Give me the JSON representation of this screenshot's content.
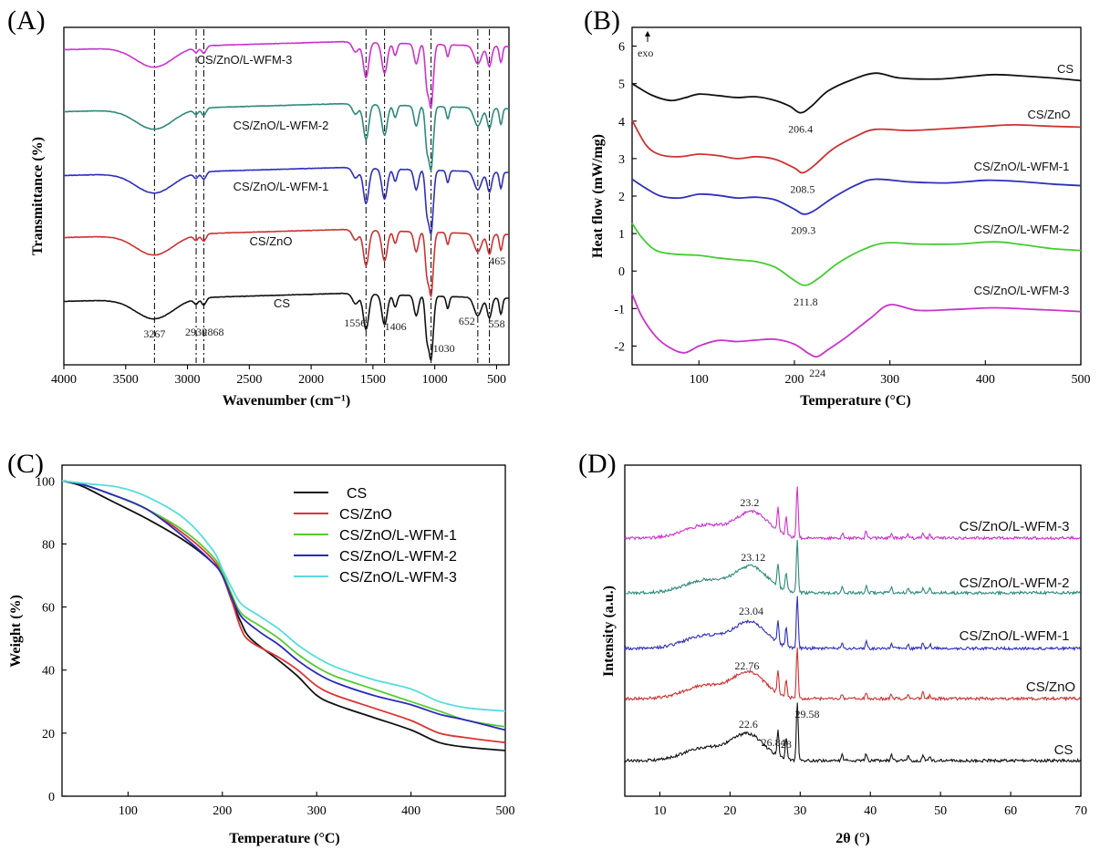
{
  "chart_data": [
    {
      "panel": "(A)",
      "type": "line",
      "xlabel": "Wavenumber (cm⁻¹)",
      "ylabel": "Transmittance (%)",
      "xlim": [
        4000,
        400
      ],
      "x_ticks": [
        "4000",
        "3500",
        "3000",
        "2500",
        "2000",
        "1500",
        "1000",
        "500"
      ],
      "y_ticks": "none",
      "reference_lines": [
        3267,
        2930,
        2868,
        1556,
        1406,
        1030,
        652,
        558
      ],
      "peak_annotations": [
        {
          "text": "3267",
          "x": 3267
        },
        {
          "text": "2930",
          "x": 2930
        },
        {
          "text": "2868",
          "x": 2868
        },
        {
          "text": "1556",
          "x": 1556
        },
        {
          "text": "1406",
          "x": 1406
        },
        {
          "text": "1030",
          "x": 1030
        },
        {
          "text": "652",
          "x": 652
        },
        {
          "text": "558",
          "x": 558
        },
        {
          "text": "465",
          "x": 465
        }
      ],
      "series": [
        {
          "name": "CS",
          "color": "#111111",
          "offset": 0
        },
        {
          "name": "CS/ZnO",
          "color": "#cc3333",
          "offset": 1
        },
        {
          "name": "CS/ZnO/L-WFM-1",
          "color": "#2f2fbb",
          "offset": 2
        },
        {
          "name": "CS/ZnO/L-WFM-2",
          "color": "#2e8a7c",
          "offset": 3
        },
        {
          "name": "CS/ZnO/L-WFM-3",
          "color": "#cc33cc",
          "offset": 4
        }
      ]
    },
    {
      "panel": "(B)",
      "type": "line",
      "xlabel": "Temperature (°C)",
      "ylabel": "Heat flow (mW/mg)",
      "xlim": [
        30,
        500
      ],
      "ylim": [
        -2.5,
        6.5
      ],
      "x_ticks": [
        "100",
        "200",
        "300",
        "400",
        "500"
      ],
      "y_ticks": [
        "-2",
        "-1",
        "0",
        "1",
        "2",
        "3",
        "4",
        "5",
        "6"
      ],
      "marker_text": "exo",
      "series": [
        {
          "name": "CS",
          "color": "#111111",
          "peak_label": "206.4",
          "points": [
            [
              30,
              5.0
            ],
            [
              50,
              4.7
            ],
            [
              70,
              4.55
            ],
            [
              85,
              4.62
            ],
            [
              100,
              4.72
            ],
            [
              120,
              4.68
            ],
            [
              140,
              4.63
            ],
            [
              160,
              4.65
            ],
            [
              180,
              4.55
            ],
            [
              195,
              4.4
            ],
            [
              206.4,
              4.22
            ],
            [
              218,
              4.4
            ],
            [
              235,
              4.8
            ],
            [
              260,
              5.1
            ],
            [
              285,
              5.28
            ],
            [
              310,
              5.15
            ],
            [
              350,
              5.12
            ],
            [
              380,
              5.18
            ],
            [
              410,
              5.24
            ],
            [
              440,
              5.2
            ],
            [
              470,
              5.15
            ],
            [
              500,
              5.08
            ]
          ]
        },
        {
          "name": "CS/ZnO",
          "color": "#cc3333",
          "peak_label": "208.5",
          "points": [
            [
              30,
              4.02
            ],
            [
              45,
              3.35
            ],
            [
              60,
              3.1
            ],
            [
              80,
              3.05
            ],
            [
              100,
              3.12
            ],
            [
              120,
              3.08
            ],
            [
              140,
              3.0
            ],
            [
              160,
              3.05
            ],
            [
              180,
              2.98
            ],
            [
              200,
              2.75
            ],
            [
              208.5,
              2.62
            ],
            [
              220,
              2.8
            ],
            [
              240,
              3.25
            ],
            [
              265,
              3.6
            ],
            [
              285,
              3.78
            ],
            [
              320,
              3.75
            ],
            [
              360,
              3.8
            ],
            [
              400,
              3.86
            ],
            [
              430,
              3.9
            ],
            [
              470,
              3.86
            ],
            [
              500,
              3.84
            ]
          ]
        },
        {
          "name": "CS/ZnO/L-WFM-1",
          "color": "#2f2fbb",
          "peak_label": "209.3",
          "points": [
            [
              30,
              2.45
            ],
            [
              45,
              2.2
            ],
            [
              60,
              2.0
            ],
            [
              80,
              1.95
            ],
            [
              100,
              2.05
            ],
            [
              120,
              2.02
            ],
            [
              140,
              1.95
            ],
            [
              160,
              1.97
            ],
            [
              180,
              1.9
            ],
            [
              200,
              1.65
            ],
            [
              209.3,
              1.52
            ],
            [
              220,
              1.6
            ],
            [
              240,
              1.95
            ],
            [
              265,
              2.3
            ],
            [
              285,
              2.45
            ],
            [
              320,
              2.38
            ],
            [
              360,
              2.35
            ],
            [
              400,
              2.42
            ],
            [
              430,
              2.4
            ],
            [
              470,
              2.32
            ],
            [
              500,
              2.28
            ]
          ]
        },
        {
          "name": "CS/ZnO/L-WFM-2",
          "color": "#44cc33",
          "peak_label": "211.8",
          "points": [
            [
              30,
              1.28
            ],
            [
              40,
              0.9
            ],
            [
              55,
              0.55
            ],
            [
              75,
              0.45
            ],
            [
              100,
              0.42
            ],
            [
              120,
              0.35
            ],
            [
              140,
              0.3
            ],
            [
              160,
              0.25
            ],
            [
              180,
              0.1
            ],
            [
              200,
              -0.25
            ],
            [
              211.8,
              -0.38
            ],
            [
              225,
              -0.2
            ],
            [
              245,
              0.2
            ],
            [
              270,
              0.55
            ],
            [
              295,
              0.75
            ],
            [
              330,
              0.72
            ],
            [
              370,
              0.72
            ],
            [
              410,
              0.78
            ],
            [
              440,
              0.7
            ],
            [
              470,
              0.6
            ],
            [
              500,
              0.55
            ]
          ]
        },
        {
          "name": "CS/ZnO/L-WFM-3",
          "color": "#cc33cc",
          "peak_label": "224",
          "points": [
            [
              30,
              -0.6
            ],
            [
              40,
              -1.2
            ],
            [
              55,
              -1.75
            ],
            [
              70,
              -2.05
            ],
            [
              85,
              -2.18
            ],
            [
              100,
              -2.0
            ],
            [
              120,
              -1.85
            ],
            [
              140,
              -1.88
            ],
            [
              160,
              -1.84
            ],
            [
              180,
              -1.82
            ],
            [
              200,
              -1.95
            ],
            [
              215,
              -2.2
            ],
            [
              224,
              -2.28
            ],
            [
              235,
              -2.1
            ],
            [
              255,
              -1.75
            ],
            [
              280,
              -1.25
            ],
            [
              300,
              -0.9
            ],
            [
              330,
              -1.05
            ],
            [
              370,
              -1.02
            ],
            [
              410,
              -0.98
            ],
            [
              450,
              -1.02
            ],
            [
              500,
              -1.08
            ]
          ]
        }
      ]
    },
    {
      "panel": "(C)",
      "type": "line",
      "xlabel": "Temperature (°C)",
      "ylabel": "Weight (%)",
      "xlim": [
        30,
        500
      ],
      "ylim": [
        0,
        105
      ],
      "x_ticks": [
        "100",
        "200",
        "300",
        "400",
        "500"
      ],
      "y_ticks": [
        "0",
        "20",
        "40",
        "60",
        "80",
        "100"
      ],
      "legend_position": "top-right",
      "series": [
        {
          "name": "CS",
          "color": "#111111",
          "points": [
            [
              30,
              100
            ],
            [
              50,
              98.5
            ],
            [
              80,
              94
            ],
            [
              120,
              88
            ],
            [
              160,
              81
            ],
            [
              190,
              74
            ],
            [
              200,
              70
            ],
            [
              210,
              62
            ],
            [
              220,
              55
            ],
            [
              230,
              50
            ],
            [
              260,
              43
            ],
            [
              280,
              38
            ],
            [
              300,
              32
            ],
            [
              320,
              29
            ],
            [
              360,
              25
            ],
            [
              400,
              21
            ],
            [
              430,
              17
            ],
            [
              460,
              15.5
            ],
            [
              500,
              14.5
            ]
          ]
        },
        {
          "name": "CS/ZnO",
          "color": "#dd3333",
          "points": [
            [
              30,
              100
            ],
            [
              50,
              99
            ],
            [
              80,
              96
            ],
            [
              120,
              91
            ],
            [
              160,
              83
            ],
            [
              190,
              75
            ],
            [
              200,
              70
            ],
            [
              210,
              62
            ],
            [
              220,
              53
            ],
            [
              230,
              49
            ],
            [
              260,
              44
            ],
            [
              280,
              40
            ],
            [
              300,
              35
            ],
            [
              320,
              32
            ],
            [
              360,
              28
            ],
            [
              400,
              24
            ],
            [
              430,
              20
            ],
            [
              460,
              18.5
            ],
            [
              500,
              17
            ]
          ]
        },
        {
          "name": "CS/ZnO/L-WFM-1",
          "color": "#55cc33",
          "points": [
            [
              30,
              100
            ],
            [
              50,
              99
            ],
            [
              80,
              96
            ],
            [
              120,
              91
            ],
            [
              160,
              84
            ],
            [
              190,
              76
            ],
            [
              200,
              71
            ],
            [
              210,
              64
            ],
            [
              220,
              58
            ],
            [
              240,
              54
            ],
            [
              260,
              50
            ],
            [
              280,
              45
            ],
            [
              300,
              41
            ],
            [
              320,
              38
            ],
            [
              360,
              34
            ],
            [
              400,
              30
            ],
            [
              430,
              27
            ],
            [
              460,
              24
            ],
            [
              500,
              22
            ]
          ]
        },
        {
          "name": "CS/ZnO/L-WFM-2",
          "color": "#2a2abb",
          "points": [
            [
              30,
              100
            ],
            [
              50,
              99
            ],
            [
              80,
              96
            ],
            [
              120,
              91
            ],
            [
              160,
              82
            ],
            [
              190,
              74
            ],
            [
              200,
              70
            ],
            [
              210,
              63
            ],
            [
              220,
              57
            ],
            [
              240,
              52
            ],
            [
              260,
              48
            ],
            [
              280,
              43
            ],
            [
              300,
              39
            ],
            [
              320,
              36
            ],
            [
              360,
              32
            ],
            [
              400,
              29
            ],
            [
              430,
              26
            ],
            [
              460,
              24
            ],
            [
              500,
              21
            ]
          ]
        },
        {
          "name": "CS/ZnO/L-WFM-3",
          "color": "#55dddd",
          "points": [
            [
              30,
              100
            ],
            [
              60,
              99
            ],
            [
              90,
              98
            ],
            [
              120,
              95
            ],
            [
              160,
              88
            ],
            [
              190,
              78
            ],
            [
              200,
              72
            ],
            [
              210,
              66
            ],
            [
              220,
              61
            ],
            [
              240,
              57
            ],
            [
              260,
              53
            ],
            [
              280,
              48
            ],
            [
              300,
              44
            ],
            [
              320,
              41
            ],
            [
              360,
              37
            ],
            [
              400,
              34
            ],
            [
              430,
              30
            ],
            [
              460,
              28
            ],
            [
              500,
              27
            ]
          ]
        }
      ]
    },
    {
      "panel": "(D)",
      "type": "line",
      "xlabel": "2θ (°)",
      "ylabel": "Intensity (a.u.)",
      "xlim": [
        5,
        70
      ],
      "x_ticks": [
        "10",
        "20",
        "30",
        "40",
        "50",
        "60",
        "70"
      ],
      "y_ticks": "none",
      "sharp_peaks": [
        26.84,
        28,
        29.58,
        36,
        39.4,
        43,
        45.4,
        47.5,
        48.5
      ],
      "series": [
        {
          "name": "CS",
          "color": "#111111",
          "offset": 0,
          "annotations": [
            "22.6",
            "26.84",
            "28",
            "29.58"
          ]
        },
        {
          "name": "CS/ZnO",
          "color": "#cc3333",
          "offset": 1,
          "annotations": [
            "22.76"
          ]
        },
        {
          "name": "CS/ZnO/L-WFM-1",
          "color": "#2f2fbb",
          "offset": 2,
          "annotations": [
            "23.04"
          ]
        },
        {
          "name": "CS/ZnO/L-WFM-2",
          "color": "#2e8a7c",
          "offset": 3,
          "annotations": [
            "23.12"
          ]
        },
        {
          "name": "CS/ZnO/L-WFM-3",
          "color": "#cc33cc",
          "offset": 4,
          "annotations": [
            "23.2"
          ]
        }
      ]
    }
  ]
}
